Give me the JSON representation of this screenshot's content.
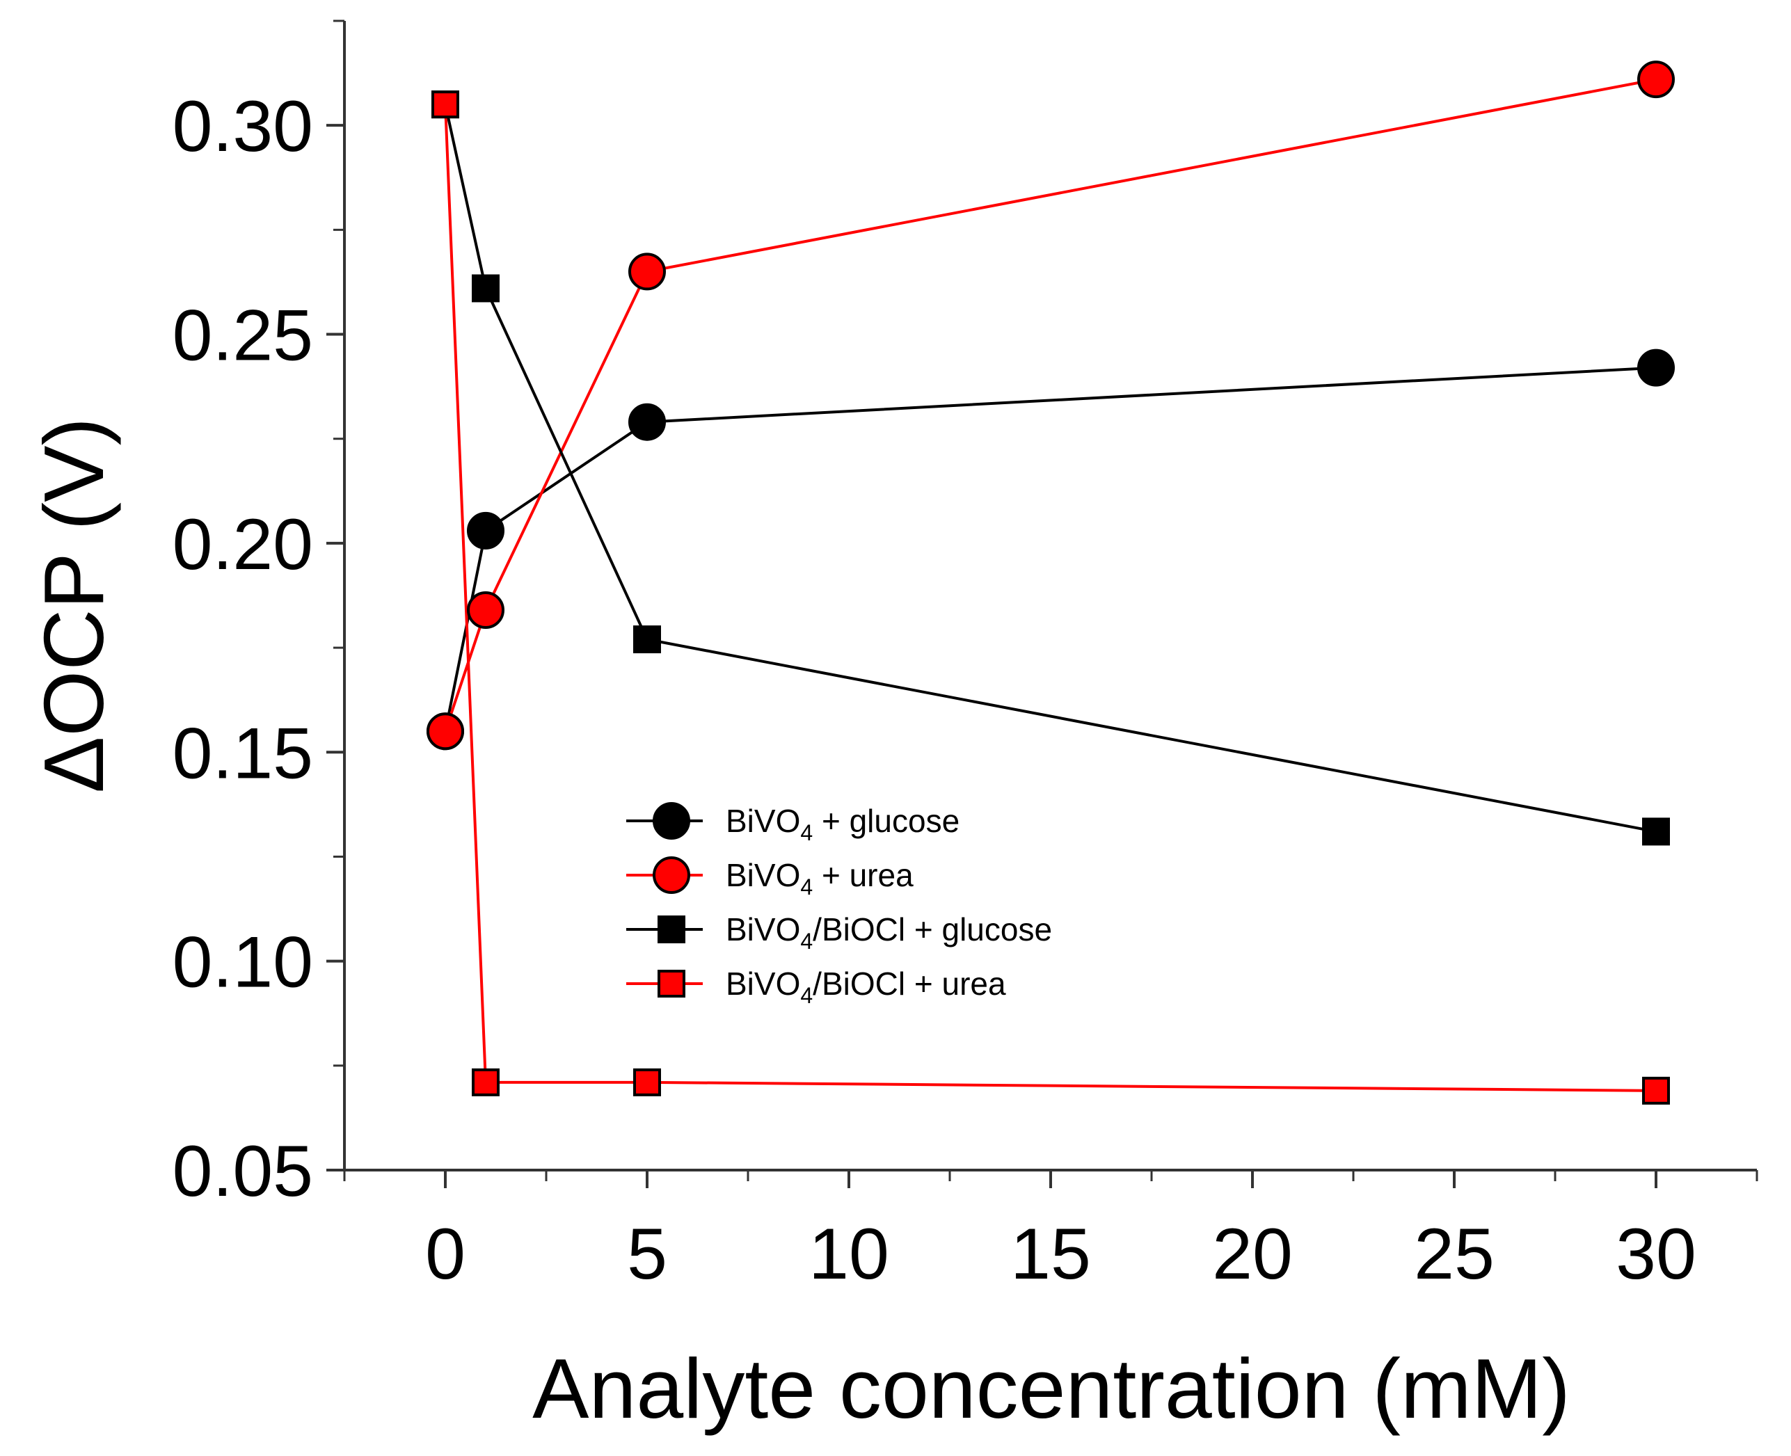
{
  "chart_data": {
    "type": "line",
    "title": "",
    "xlabel": "Analyte concentration (mM)",
    "ylabel": "ΔOCP (V)",
    "xlim": [
      -2.5,
      32.5
    ],
    "ylim": [
      0.05,
      0.325
    ],
    "x_ticks": [
      0,
      5,
      10,
      15,
      20,
      25,
      30
    ],
    "y_ticks": [
      0.05,
      0.1,
      0.15,
      0.2,
      0.25,
      0.3
    ],
    "x_tick_labels": [
      "0",
      "5",
      "10",
      "15",
      "20",
      "25",
      "30"
    ],
    "y_tick_labels": [
      "0.05",
      "0.10",
      "0.15",
      "0.20",
      "0.25",
      "0.30"
    ],
    "grid": false,
    "legend_position": "center-left",
    "x": [
      0,
      1,
      5,
      30
    ],
    "series": [
      {
        "name": "BiVO4 + glucose",
        "legend_parts": [
          "BiVO",
          "4",
          " + glucose"
        ],
        "marker": "circle",
        "color": "#000000",
        "fill": "#000000",
        "values": [
          0.155,
          0.203,
          0.229,
          0.242
        ]
      },
      {
        "name": "BiVO4 + urea",
        "legend_parts": [
          "BiVO",
          "4",
          " + urea"
        ],
        "marker": "circle",
        "color": "#ff0000",
        "fill": "#ff0000",
        "values": [
          0.155,
          0.184,
          0.265,
          0.311
        ]
      },
      {
        "name": "BiVO4/BiOCl + glucose",
        "legend_parts": [
          "BiVO",
          "4",
          "/BiOCl + glucose"
        ],
        "marker": "square",
        "color": "#000000",
        "fill": "#000000",
        "values": [
          0.305,
          0.261,
          0.177,
          0.131
        ]
      },
      {
        "name": "BiVO4/BiOCl + urea",
        "legend_parts": [
          "BiVO",
          "4",
          "/BiOCl + urea"
        ],
        "marker": "square",
        "color": "#ff0000",
        "fill": "#ff0000",
        "values": [
          0.305,
          0.071,
          0.071,
          0.069
        ]
      }
    ]
  }
}
